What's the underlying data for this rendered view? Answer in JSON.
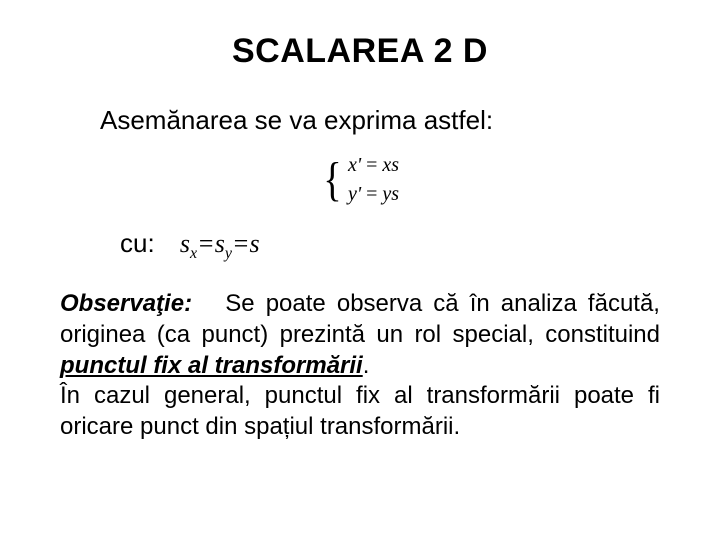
{
  "title": "SCALAREA 2 D",
  "lead": "Asemănarea se va exprima astfel:",
  "equations": {
    "line1_lhs": "x'",
    "line1_rhs": "xs",
    "line2_lhs": "y'",
    "line2_rhs": "ys",
    "eq_sign": " = "
  },
  "cu": {
    "label": "cu:",
    "s": "s",
    "x": "x",
    "y": "y",
    "eq": "="
  },
  "observation": {
    "label": "Observaţie:",
    "text1": "Se poate observa că în analiza făcută, originea (ca punct) prezintă un rol special, constituind ",
    "underlined": "punctul fix al transformării",
    "period": ".",
    "text2": "În cazul general, punctul fix al transformării poate fi oricare punct din spațiul transformării."
  },
  "style": {
    "background": "#ffffff",
    "text_color": "#000000",
    "title_fontsize": 34,
    "body_fontsize": 24,
    "lead_fontsize": 26,
    "eq_fontsize": 20,
    "cu_eq_fontsize": 26
  }
}
